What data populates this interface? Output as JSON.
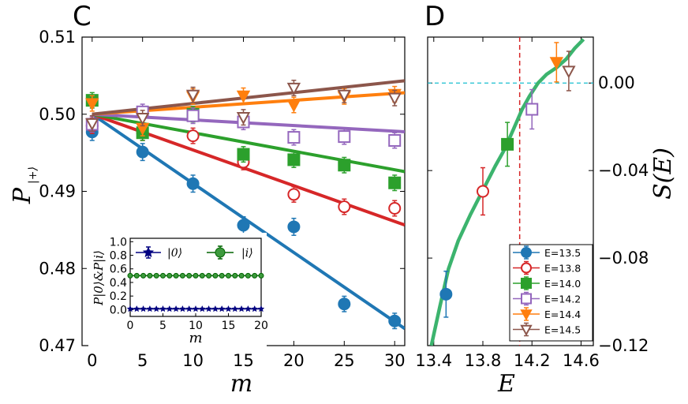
{
  "chart_data": [
    {
      "panel": "C",
      "type": "scatter",
      "xlabel": "m",
      "ylabel": "P_{|+⟩}",
      "xlim": [
        -1,
        31
      ],
      "ylim": [
        0.47,
        0.51
      ],
      "xticks": [
        0,
        5,
        10,
        15,
        20,
        25,
        30
      ],
      "yticks": [
        0.47,
        0.48,
        0.49,
        0.5,
        0.51
      ],
      "ytick_labels": [
        "0.47",
        "0.48",
        "0.49",
        "0.50",
        "0.51"
      ],
      "series": [
        {
          "name": "E=13.5",
          "color": "#1f77b4",
          "marker": "circle",
          "x": [
            0,
            5,
            10,
            15,
            20,
            25,
            30
          ],
          "y": [
            0.4977,
            0.4951,
            0.491,
            0.4856,
            0.4854,
            0.4754,
            0.4732
          ],
          "err": [
            0.0011,
            0.0011,
            0.0011,
            0.0011,
            0.0011,
            0.001,
            0.001
          ],
          "fit": [
            0.5,
            0.4731
          ]
        },
        {
          "name": "E=13.8",
          "color": "#d62728",
          "marker": "open-circle",
          "x": [
            0,
            5,
            10,
            15,
            20,
            25,
            30
          ],
          "y": [
            0.4985,
            0.4976,
            0.4972,
            0.4938,
            0.4896,
            0.488,
            0.4878
          ],
          "err": [
            0.001,
            0.001,
            0.001,
            0.001,
            0.001,
            0.001,
            0.001
          ],
          "fit": [
            0.5,
            0.4861
          ]
        },
        {
          "name": "E=14.0",
          "color": "#2ca02c",
          "marker": "square",
          "x": [
            0,
            5,
            10,
            15,
            20,
            25,
            30
          ],
          "y": [
            0.5018,
            0.4976,
            0.5,
            0.4948,
            0.4941,
            0.4934,
            0.4911
          ],
          "err": [
            0.001,
            0.001,
            0.001,
            0.001,
            0.001,
            0.001,
            0.001
          ],
          "fit": [
            0.5,
            0.4928
          ]
        },
        {
          "name": "E=14.2",
          "color": "#9467bd",
          "marker": "open-square",
          "x": [
            0,
            5,
            10,
            15,
            20,
            25,
            30
          ],
          "y": [
            0.4987,
            0.5003,
            0.4998,
            0.499,
            0.497,
            0.4971,
            0.4966
          ],
          "err": [
            0.001,
            0.001,
            0.001,
            0.001,
            0.001,
            0.001,
            0.001
          ],
          "fit": [
            0.5,
            0.4978
          ]
        },
        {
          "name": "E=14.4",
          "color": "#ff7f0e",
          "marker": "triangle-down",
          "x": [
            0,
            5,
            10,
            15,
            20,
            25,
            30
          ],
          "y": [
            0.5014,
            0.4982,
            0.5023,
            0.5024,
            0.5012,
            0.5023,
            0.5026
          ],
          "err": [
            0.001,
            0.001,
            0.001,
            0.001,
            0.001,
            0.001,
            0.001
          ],
          "fit": [
            0.5,
            0.5027
          ]
        },
        {
          "name": "E=14.5",
          "color": "#8c564b",
          "marker": "open-triangle-down",
          "x": [
            0,
            5,
            10,
            15,
            20,
            25,
            30
          ],
          "y": [
            0.4988,
            0.4995,
            0.5025,
            0.4996,
            0.5034,
            0.5025,
            0.5021
          ],
          "err": [
            0.001,
            0.001,
            0.001,
            0.001,
            0.001,
            0.001,
            0.001
          ],
          "fit": [
            0.5,
            0.5042
          ]
        }
      ],
      "inset": {
        "xlabel": "m",
        "ylabel": "P_{|0⟩} & P_{|i⟩}",
        "xlim": [
          0,
          20
        ],
        "ylim": [
          -0.1,
          1.05
        ],
        "xticks": [
          0,
          5,
          10,
          15,
          20
        ],
        "yticks": [
          0.0,
          0.2,
          0.4,
          0.6,
          0.8,
          1.0
        ],
        "ytick_labels": [
          "0.0",
          "0.2",
          "0.4",
          "0.6",
          "0.8",
          "1.0"
        ],
        "series": [
          {
            "name": "|0⟩",
            "color": "#000080",
            "marker": "star",
            "x": [
              0,
              1,
              2,
              3,
              4,
              5,
              6,
              7,
              8,
              9,
              10,
              11,
              12,
              13,
              14,
              15,
              16,
              17,
              18,
              19,
              20
            ],
            "value": 0.01
          },
          {
            "name": "|i⟩",
            "color": "#006400",
            "face": "#3d9a3d",
            "marker": "circle",
            "x": [
              0,
              1,
              2,
              3,
              4,
              5,
              6,
              7,
              8,
              9,
              10,
              11,
              12,
              13,
              14,
              15,
              16,
              17,
              18,
              19,
              20
            ],
            "value": 0.5
          }
        ]
      }
    },
    {
      "panel": "D",
      "type": "line",
      "xlabel": "E",
      "ylabel": "S(E)",
      "xlim": [
        13.35,
        14.7
      ],
      "ylim": [
        -0.12,
        0.021
      ],
      "xticks": [
        13.4,
        13.8,
        14.2,
        14.6
      ],
      "xtick_labels": [
        "13.4",
        "13.8",
        "14.2",
        "14.6"
      ],
      "yticks": [
        0.0,
        -0.04,
        -0.08,
        -0.12
      ],
      "ytick_labels": [
        "0.00",
        "−0.04",
        "−0.08",
        "−0.12"
      ],
      "hline": 0.0,
      "vline": 14.1,
      "curve": {
        "color": "#3cb46e",
        "x": [
          13.38,
          13.45,
          13.52,
          13.6,
          13.7,
          13.8,
          13.9,
          13.98,
          14.05,
          14.12,
          14.18,
          14.25,
          14.32,
          14.4,
          14.48,
          14.55,
          14.62
        ],
        "y": [
          -0.12,
          -0.102,
          -0.085,
          -0.072,
          -0.06,
          -0.049,
          -0.038,
          -0.03,
          -0.021,
          -0.012,
          -0.006,
          0.0,
          0.004,
          0.007,
          0.011,
          0.016,
          0.02
        ]
      },
      "points": [
        {
          "name": "E=13.5",
          "x": 13.5,
          "y": -0.0965,
          "err": 0.0105
        },
        {
          "name": "E=13.8",
          "x": 13.8,
          "y": -0.0495,
          "err": 0.0108
        },
        {
          "name": "E=14.0",
          "x": 14.0,
          "y": -0.028,
          "err": 0.01
        },
        {
          "name": "E=14.2",
          "x": 14.2,
          "y": -0.012,
          "err": 0.009
        },
        {
          "name": "E=14.4",
          "x": 14.4,
          "y": 0.0095,
          "err": 0.009
        },
        {
          "name": "E=14.5",
          "x": 14.5,
          "y": 0.0055,
          "err": 0.009
        }
      ],
      "legend_position": "lower-right"
    }
  ],
  "panel_labels": {
    "c": "C",
    "d": "D"
  },
  "labels": {
    "c_xlabel": "m",
    "c_ylabel_main": "P",
    "c_ylabel_sub": "|+⟩",
    "d_xlabel": "E",
    "d_ylabel": "S(E)",
    "inset_xlabel": "m",
    "inset_ylabel": "P|0⟩&P|i⟩",
    "inset_legend_0": "|0⟩",
    "inset_legend_i": "|i⟩"
  }
}
